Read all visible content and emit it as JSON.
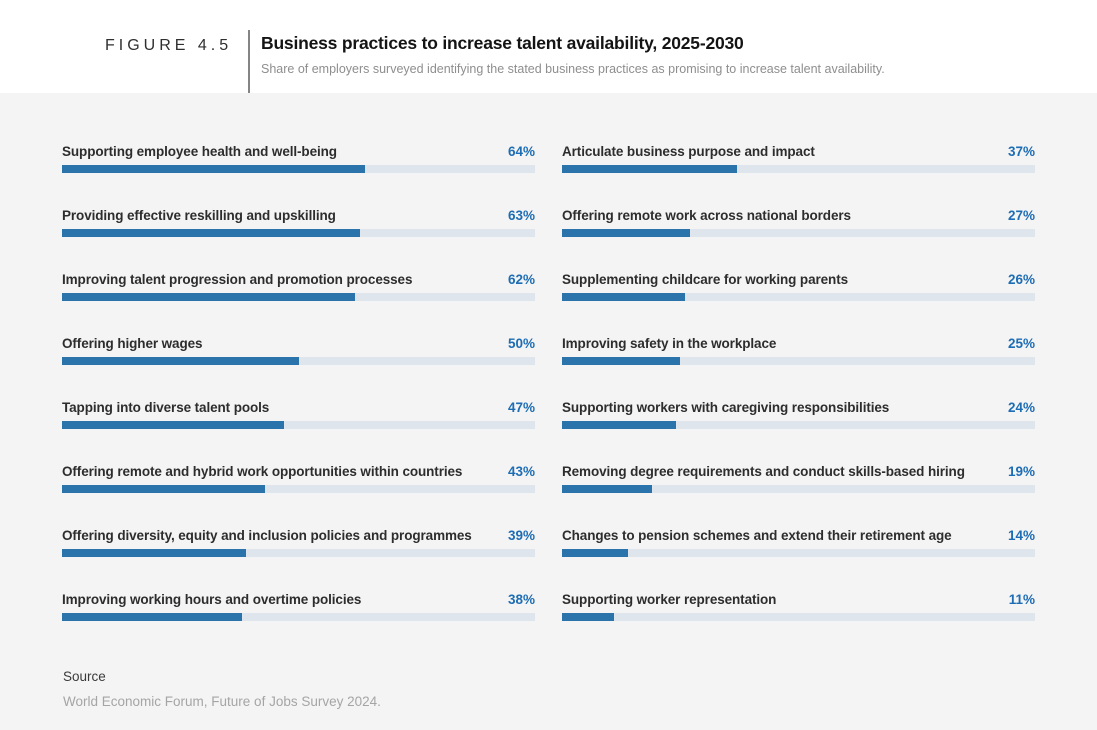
{
  "figure": {
    "label": "FIGURE 4.5",
    "title": "Business practices to increase talent availability, 2025-2030",
    "subtitle": "Share of employers surveyed identifying the stated business practices as promising to increase talent availability."
  },
  "source": {
    "label": "Source",
    "text": "World Economic Forum, Future of Jobs Survey 2024."
  },
  "colors": {
    "header_bg": "#ffffff",
    "body_bg": "#f4f4f4",
    "bar_fill": "#2a74ab",
    "bar_track": "#dfe5ec",
    "value_text": "#1d6db4"
  },
  "chart_data": {
    "type": "bar",
    "orientation": "horizontal",
    "value_unit": "%",
    "xlim": [
      0,
      100
    ],
    "grid": false,
    "legend": false,
    "value_labels_position": "right-aligned at track end",
    "title": "Business practices to increase talent availability, 2025-2030",
    "subtitle": "Share of employers surveyed identifying the stated business practices as promising to increase talent availability.",
    "columns": [
      {
        "items": [
          {
            "label": "Supporting employee health and well-being",
            "value": 64
          },
          {
            "label": "Providing effective reskilling and upskilling",
            "value": 63
          },
          {
            "label": "Improving talent progression and promotion processes",
            "value": 62
          },
          {
            "label": "Offering higher wages",
            "value": 50
          },
          {
            "label": "Tapping into diverse talent pools",
            "value": 47
          },
          {
            "label": "Offering remote and hybrid work opportunities within countries",
            "value": 43
          },
          {
            "label": "Offering diversity, equity and inclusion policies and programmes",
            "value": 39
          },
          {
            "label": "Improving working hours and overtime policies",
            "value": 38
          }
        ]
      },
      {
        "items": [
          {
            "label": "Articulate business purpose and impact",
            "value": 37
          },
          {
            "label": "Offering remote work across national borders",
            "value": 27
          },
          {
            "label": "Supplementing childcare for working parents",
            "value": 26
          },
          {
            "label": "Improving safety in the workplace",
            "value": 25
          },
          {
            "label": "Supporting workers with caregiving responsibilities",
            "value": 24
          },
          {
            "label": "Removing degree requirements and conduct skills-based hiring",
            "value": 19
          },
          {
            "label": "Changes to pension schemes and extend their retirement age",
            "value": 14
          },
          {
            "label": "Supporting worker representation",
            "value": 11
          }
        ]
      }
    ]
  }
}
